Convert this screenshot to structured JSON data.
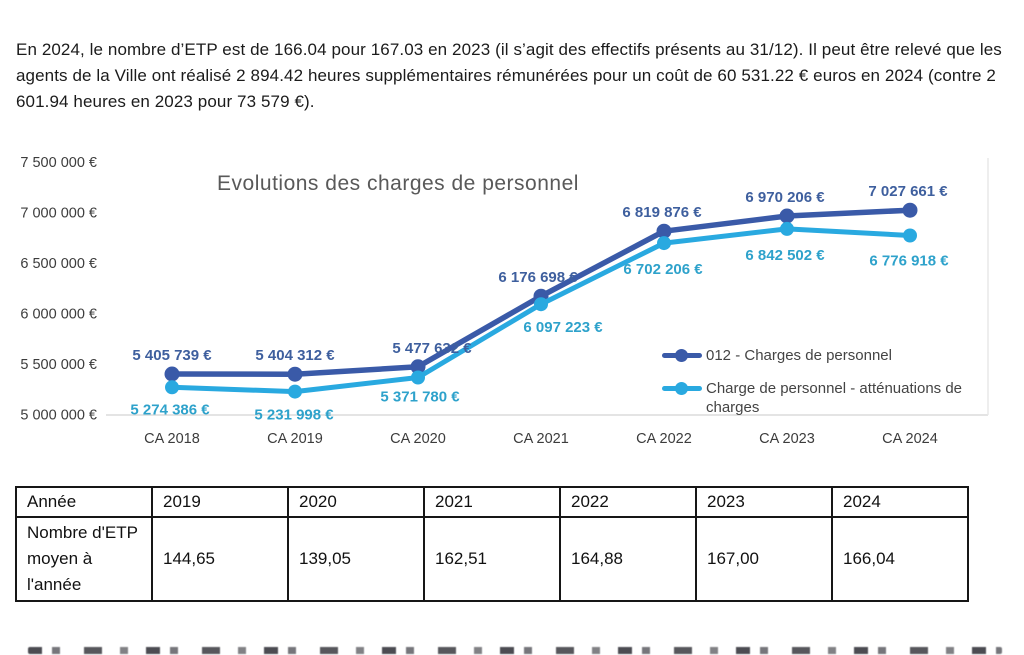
{
  "intro_paragraph": "En 2024, le nombre d’ETP est de 166.04 pour 167.03 en 2023 (il s’agit des effectifs présents au 31/12). Il peut être relevé que les agents de la Ville ont réalisé 2 894.42 heures supplémentaires rémunérées pour un coût de 60 531.22 € euros en 2024 (contre 2 601.94 heures en 2023 pour 73 579 €).",
  "chart_data": {
    "type": "line",
    "title": "Evolutions des charges de personnel",
    "categories": [
      "CA 2018",
      "CA 2019",
      "CA 2020",
      "CA 2021",
      "CA 2022",
      "CA 2023",
      "CA 2024"
    ],
    "ylim": [
      5000000,
      7500000
    ],
    "y_tick_step": 500000,
    "y_ticks": [
      "7 500 000 €",
      "7 000 000 €",
      "6 500 000 €",
      "6 000 000 €",
      "5 500 000 €",
      "5 000 000 €"
    ],
    "grid": "bottom-baseline-only",
    "legend_position": "inside-bottom-right",
    "colors": {
      "axis_text": "#3c3c3c",
      "title": "#595959",
      "gridline": "#dcdcdc"
    },
    "series": [
      {
        "name": "012 - Charges de personnel",
        "color": "#3a5aa8",
        "label_color": "#3e5f9e",
        "values": [
          5405739,
          5404312,
          5477632,
          6176698,
          6819876,
          6970206,
          7027661
        ],
        "labels": [
          "5 405 739 €",
          "5 404 312 €",
          "5 477 632 €",
          "6 176 698 €",
          "6 819 876 €",
          "6 970 206 €",
          "7 027 661 €"
        ]
      },
      {
        "name": "Charge de personnel - atténuations de charges",
        "color": "#29a9e0",
        "label_color": "#2ea2cb",
        "values": [
          5274386,
          5231998,
          5371780,
          6097223,
          6702206,
          6842502,
          6776918
        ],
        "labels": [
          "5 274 386 €",
          "5 231 998 €",
          "5 371 780 €",
          "6 097 223 €",
          "6 702 206 €",
          "6 842 502 €",
          "6 776 918 €"
        ]
      }
    ]
  },
  "table": {
    "header": [
      "Année",
      "2019",
      "2020",
      "2021",
      "2022",
      "2023",
      "2024"
    ],
    "rows": [
      [
        "Nombre d'ETP moyen à l'année",
        "144,65",
        "139,05",
        "162,51",
        "164,88",
        "167,00",
        "166,04"
      ]
    ]
  }
}
